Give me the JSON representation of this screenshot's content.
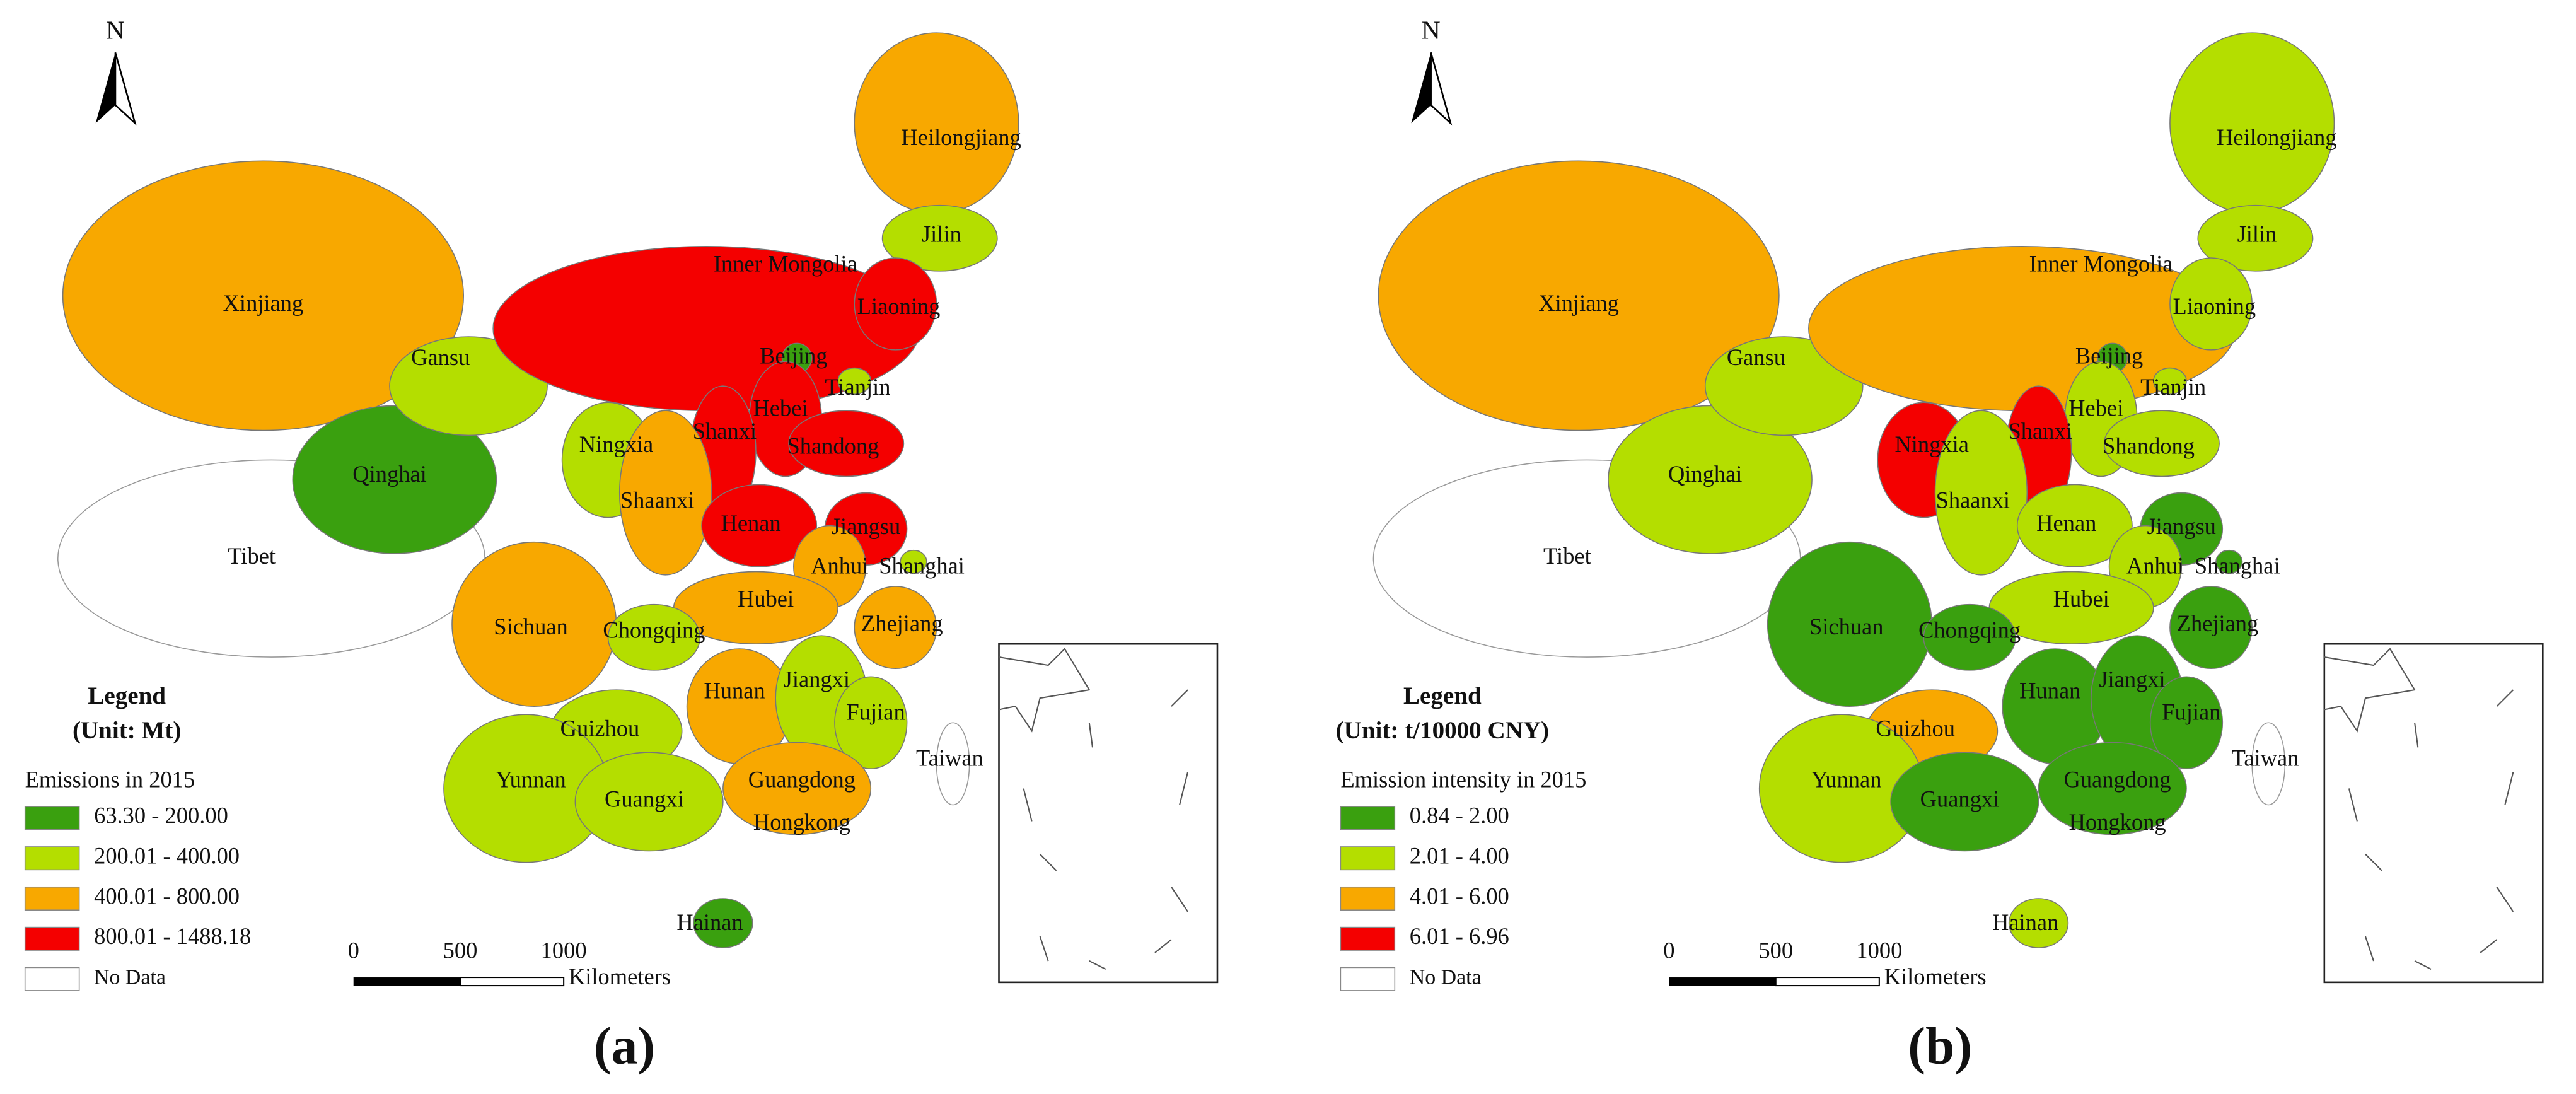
{
  "maps": [
    {
      "north": "N",
      "legend_title": "Legend",
      "legend_unit": "(Unit: Mt)",
      "legend_subtitle": "Emissions in 2015",
      "classes": [
        {
          "label": "63.30 - 200.00",
          "color": "#3aa00f"
        },
        {
          "label": "200.01 - 400.00",
          "color": "#b4de00"
        },
        {
          "label": "400.01 - 800.00",
          "color": "#f8a800"
        },
        {
          "label": "800.01 - 1488.18",
          "color": "#f40000"
        }
      ],
      "no_data": "No Data",
      "scale_labels": [
        "0",
        "500",
        "1000"
      ],
      "scale_unit": "Kilometers",
      "panel": "(a)",
      "regions": [
        {
          "name": "Xinjiang",
          "color": "#f8a800"
        },
        {
          "name": "Tibet",
          "color": null
        },
        {
          "name": "Qinghai",
          "color": "#3aa00f"
        },
        {
          "name": "Gansu",
          "color": "#b4de00"
        },
        {
          "name": "Ningxia",
          "color": "#b4de00"
        },
        {
          "name": "Inner Mongolia",
          "color": "#f40000"
        },
        {
          "name": "Heilongjiang",
          "color": "#f8a800"
        },
        {
          "name": "Jilin",
          "color": "#b4de00"
        },
        {
          "name": "Liaoning",
          "color": "#f40000"
        },
        {
          "name": "Beijing",
          "color": "#3aa00f"
        },
        {
          "name": "Tianjin",
          "color": "#b4de00"
        },
        {
          "name": "Hebei",
          "color": "#f40000"
        },
        {
          "name": "Shanxi",
          "color": "#f40000"
        },
        {
          "name": "Shandong",
          "color": "#f40000"
        },
        {
          "name": "Shaanxi",
          "color": "#f8a800"
        },
        {
          "name": "Henan",
          "color": "#f40000"
        },
        {
          "name": "Jiangsu",
          "color": "#f40000"
        },
        {
          "name": "Anhui",
          "color": "#f8a800"
        },
        {
          "name": "Shanghai",
          "color": "#b4de00"
        },
        {
          "name": "Hubei",
          "color": "#f8a800"
        },
        {
          "name": "Sichuan",
          "color": "#f8a800"
        },
        {
          "name": "Chongqing",
          "color": "#b4de00"
        },
        {
          "name": "Zhejiang",
          "color": "#f8a800"
        },
        {
          "name": "Hunan",
          "color": "#f8a800"
        },
        {
          "name": "Jiangxi",
          "color": "#b4de00"
        },
        {
          "name": "Guizhou",
          "color": "#b4de00"
        },
        {
          "name": "Fujian",
          "color": "#b4de00"
        },
        {
          "name": "Yunnan",
          "color": "#b4de00"
        },
        {
          "name": "Guangxi",
          "color": "#b4de00"
        },
        {
          "name": "Guangdong",
          "color": "#f8a800"
        },
        {
          "name": "Hongkong",
          "color": null
        },
        {
          "name": "Hainan",
          "color": "#3aa00f"
        },
        {
          "name": "Taiwan",
          "color": null
        }
      ]
    },
    {
      "north": "N",
      "legend_title": "Legend",
      "legend_unit": "(Unit: t/10000 CNY)",
      "legend_subtitle": "Emission intensity in 2015",
      "classes": [
        {
          "label": "0.84 - 2.00",
          "color": "#3aa00f"
        },
        {
          "label": "2.01 - 4.00",
          "color": "#b4de00"
        },
        {
          "label": "4.01 - 6.00",
          "color": "#f8a800"
        },
        {
          "label": "6.01 - 6.96",
          "color": "#f40000"
        }
      ],
      "no_data": "No Data",
      "scale_labels": [
        "0",
        "500",
        "1000"
      ],
      "scale_unit": "Kilometers",
      "panel": "(b)",
      "regions": [
        {
          "name": "Xinjiang",
          "color": "#f8a800"
        },
        {
          "name": "Tibet",
          "color": null
        },
        {
          "name": "Qinghai",
          "color": "#b4de00"
        },
        {
          "name": "Gansu",
          "color": "#b4de00"
        },
        {
          "name": "Ningxia",
          "color": "#f40000"
        },
        {
          "name": "Inner Mongolia",
          "color": "#f8a800"
        },
        {
          "name": "Heilongjiang",
          "color": "#b4de00"
        },
        {
          "name": "Jilin",
          "color": "#b4de00"
        },
        {
          "name": "Liaoning",
          "color": "#b4de00"
        },
        {
          "name": "Beijing",
          "color": "#3aa00f"
        },
        {
          "name": "Tianjin",
          "color": "#b4de00"
        },
        {
          "name": "Hebei",
          "color": "#b4de00"
        },
        {
          "name": "Shanxi",
          "color": "#f40000"
        },
        {
          "name": "Shandong",
          "color": "#b4de00"
        },
        {
          "name": "Shaanxi",
          "color": "#b4de00"
        },
        {
          "name": "Henan",
          "color": "#b4de00"
        },
        {
          "name": "Jiangsu",
          "color": "#3aa00f"
        },
        {
          "name": "Anhui",
          "color": "#b4de00"
        },
        {
          "name": "Shanghai",
          "color": "#3aa00f"
        },
        {
          "name": "Hubei",
          "color": "#b4de00"
        },
        {
          "name": "Sichuan",
          "color": "#3aa00f"
        },
        {
          "name": "Chongqing",
          "color": "#3aa00f"
        },
        {
          "name": "Zhejiang",
          "color": "#3aa00f"
        },
        {
          "name": "Hunan",
          "color": "#3aa00f"
        },
        {
          "name": "Jiangxi",
          "color": "#3aa00f"
        },
        {
          "name": "Guizhou",
          "color": "#f8a800"
        },
        {
          "name": "Fujian",
          "color": "#3aa00f"
        },
        {
          "name": "Yunnan",
          "color": "#b4de00"
        },
        {
          "name": "Guangxi",
          "color": "#3aa00f"
        },
        {
          "name": "Guangdong",
          "color": "#3aa00f"
        },
        {
          "name": "Hongkong",
          "color": null
        },
        {
          "name": "Hainan",
          "color": "#b4de00"
        },
        {
          "name": "Taiwan",
          "color": null
        }
      ]
    }
  ]
}
